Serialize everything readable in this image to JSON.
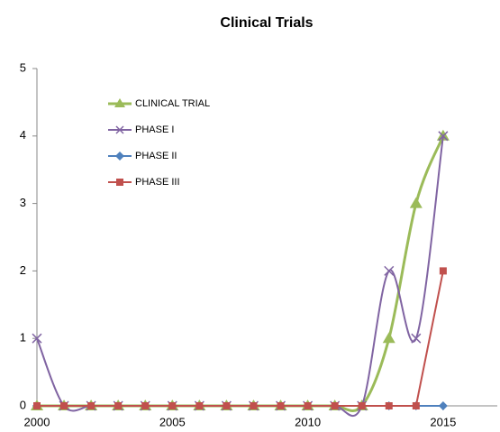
{
  "chart_data": {
    "type": "line",
    "title": "Clinical Trials",
    "x": [
      2000,
      2001,
      2002,
      2003,
      2004,
      2005,
      2006,
      2007,
      2008,
      2009,
      2010,
      2011,
      2012,
      2013,
      2014,
      2015
    ],
    "series": [
      {
        "name": "CLINICAL TRIAL",
        "color": "#9bbb59",
        "values": [
          0,
          0,
          0,
          0,
          0,
          0,
          0,
          0,
          0,
          0,
          0,
          0,
          0,
          1,
          3,
          4
        ]
      },
      {
        "name": "PHASE I",
        "color": "#8064a2",
        "values": [
          1,
          0,
          0,
          0,
          0,
          0,
          0,
          0,
          0,
          0,
          0,
          0,
          0,
          2,
          1,
          4
        ]
      },
      {
        "name": "PHASE II",
        "color": "#4f81bd",
        "values": [
          0,
          0,
          0,
          0,
          0,
          0,
          0,
          0,
          0,
          0,
          0,
          0,
          0,
          0,
          0,
          0
        ]
      },
      {
        "name": "PHASE III",
        "color": "#c0504d",
        "values": [
          0,
          0,
          0,
          0,
          0,
          0,
          0,
          0,
          0,
          0,
          0,
          0,
          0,
          0,
          0,
          2
        ]
      }
    ],
    "xlim": [
      2000,
      2017
    ],
    "xticks": [
      2000,
      2005,
      2010,
      2015
    ],
    "ylim": [
      0,
      5
    ],
    "yticks": [
      0,
      1,
      2,
      3,
      4,
      5
    ],
    "grid": false,
    "legend": "upper left"
  }
}
